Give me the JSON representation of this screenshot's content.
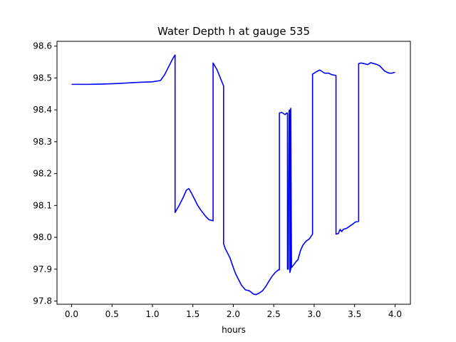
{
  "chart_data": {
    "type": "line",
    "title": "Water Depth h at gauge 535",
    "xlabel": "hours",
    "ylabel": "",
    "xlim": [
      -0.18,
      4.19
    ],
    "ylim": [
      97.79,
      98.615
    ],
    "xticks": [
      0.0,
      0.5,
      1.0,
      1.5,
      2.0,
      2.5,
      3.0,
      3.5,
      4.0
    ],
    "xtick_labels": [
      "0.0",
      "0.5",
      "1.0",
      "1.5",
      "2.0",
      "2.5",
      "3.0",
      "3.5",
      "4.0"
    ],
    "yticks": [
      97.8,
      97.9,
      98.0,
      98.1,
      98.2,
      98.3,
      98.4,
      98.5,
      98.6
    ],
    "ytick_labels": [
      "97.8",
      "97.9",
      "98.0",
      "98.1",
      "98.2",
      "98.3",
      "98.4",
      "98.5",
      "98.6"
    ],
    "grid": false,
    "legend": "none",
    "series": [
      {
        "color": "#0000ff",
        "x": [
          0.0,
          0.2,
          0.4,
          0.6,
          0.8,
          1.0,
          1.1,
          1.15,
          1.2,
          1.25,
          1.28,
          1.28,
          1.33,
          1.38,
          1.42,
          1.45,
          1.48,
          1.52,
          1.56,
          1.6,
          1.65,
          1.7,
          1.75,
          1.75,
          1.8,
          1.84,
          1.88,
          1.88,
          1.9,
          1.93,
          1.96,
          2.0,
          2.03,
          2.06,
          2.1,
          2.15,
          2.2,
          2.25,
          2.28,
          2.32,
          2.36,
          2.4,
          2.44,
          2.48,
          2.52,
          2.56,
          2.57,
          2.57,
          2.6,
          2.64,
          2.66,
          2.67,
          2.67,
          2.68,
          2.69,
          2.69,
          2.7,
          2.7,
          2.7,
          2.71,
          2.71,
          2.72,
          2.75,
          2.78,
          2.8,
          2.83,
          2.86,
          2.9,
          2.94,
          2.98,
          2.98,
          3.0,
          3.03,
          3.07,
          3.1,
          3.13,
          3.18,
          3.22,
          3.27,
          3.27,
          3.3,
          3.32,
          3.34,
          3.36,
          3.4,
          3.44,
          3.48,
          3.51,
          3.55,
          3.55,
          3.58,
          3.62,
          3.66,
          3.7,
          3.74,
          3.78,
          3.81,
          3.84,
          3.87,
          3.9,
          3.93,
          3.96,
          4.0
        ],
        "y": [
          98.48,
          98.48,
          98.481,
          98.483,
          98.486,
          98.488,
          98.492,
          98.51,
          98.535,
          98.56,
          98.572,
          98.078,
          98.1,
          98.125,
          98.148,
          98.153,
          98.14,
          98.12,
          98.1,
          98.085,
          98.068,
          98.055,
          98.052,
          98.547,
          98.525,
          98.5,
          98.475,
          97.98,
          97.965,
          97.95,
          97.935,
          97.905,
          97.885,
          97.87,
          97.85,
          97.835,
          97.832,
          97.822,
          97.82,
          97.825,
          97.832,
          97.845,
          97.862,
          97.878,
          97.89,
          97.898,
          97.898,
          98.39,
          98.392,
          98.385,
          98.39,
          98.39,
          97.9,
          97.9,
          98.398,
          98.398,
          98.4,
          97.89,
          97.89,
          97.9,
          98.405,
          97.905,
          97.915,
          97.925,
          97.93,
          97.958,
          97.975,
          97.988,
          97.995,
          98.01,
          98.512,
          98.515,
          98.52,
          98.525,
          98.52,
          98.515,
          98.515,
          98.51,
          98.508,
          98.01,
          98.012,
          98.025,
          98.018,
          98.025,
          98.028,
          98.035,
          98.042,
          98.048,
          98.05,
          98.545,
          98.547,
          98.545,
          98.542,
          98.548,
          98.545,
          98.542,
          98.538,
          98.53,
          98.522,
          98.518,
          98.515,
          98.515,
          98.518
        ]
      }
    ]
  }
}
